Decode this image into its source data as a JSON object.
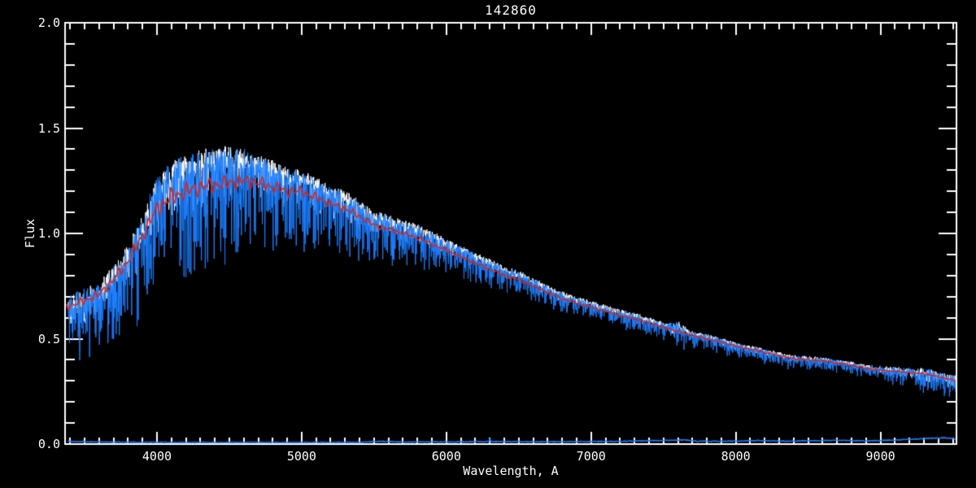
{
  "figure": {
    "background": "#000000",
    "text_color": "#ffffff"
  },
  "chart_data": {
    "type": "line",
    "title": "142860",
    "xlabel": "Wavelength, A",
    "ylabel": "Flux",
    "xlim": [
      3365,
      9525
    ],
    "ylim": [
      0.0,
      2.0
    ],
    "grid": false,
    "axis_color": "#ffffff",
    "x_major_ticks": [
      4000,
      5000,
      6000,
      7000,
      8000,
      9000
    ],
    "x_tick_labels": [
      "4000",
      "5000",
      "6000",
      "7000",
      "8000",
      "9000"
    ],
    "x_minor_step": 100,
    "y_major_ticks": [
      0.0,
      0.5,
      1.0,
      1.5,
      2.0
    ],
    "y_tick_labels": [
      "0.0",
      "0.5",
      "1.0",
      "1.5",
      "2.0"
    ],
    "y_minor_step": 0.1,
    "series": [
      {
        "name": "observed-spectrum-raw",
        "color": "#ffffff",
        "role": "observed spectrum (white, drawn beneath blue)"
      },
      {
        "name": "observed-spectrum",
        "color": "#1d7fff",
        "role": "observed spectrum (blue, noisy)"
      },
      {
        "name": "model-fit",
        "color": "#d8251b",
        "role": "smooth template/model fit (red)"
      },
      {
        "name": "noise-spectrum",
        "color": "#1d7fff",
        "role": "error/noise spectrum along flux=0"
      }
    ],
    "model_continuum": [
      [
        3365,
        0.65
      ],
      [
        3500,
        0.68
      ],
      [
        3600,
        0.71
      ],
      [
        3700,
        0.78
      ],
      [
        3800,
        0.87
      ],
      [
        3900,
        0.99
      ],
      [
        4000,
        1.12
      ],
      [
        4100,
        1.17
      ],
      [
        4200,
        1.2
      ],
      [
        4300,
        1.22
      ],
      [
        4400,
        1.23
      ],
      [
        4500,
        1.24
      ],
      [
        4600,
        1.25
      ],
      [
        4700,
        1.24
      ],
      [
        4800,
        1.22
      ],
      [
        4900,
        1.2
      ],
      [
        5000,
        1.2
      ],
      [
        5100,
        1.17
      ],
      [
        5200,
        1.14
      ],
      [
        5300,
        1.12
      ],
      [
        5400,
        1.08
      ],
      [
        5500,
        1.04
      ],
      [
        5600,
        1.02
      ],
      [
        5700,
        1.0
      ],
      [
        5800,
        0.98
      ],
      [
        5900,
        0.95
      ],
      [
        6000,
        0.92
      ],
      [
        6100,
        0.89
      ],
      [
        6200,
        0.86
      ],
      [
        6300,
        0.83
      ],
      [
        6400,
        0.8
      ],
      [
        6500,
        0.78
      ],
      [
        6600,
        0.75
      ],
      [
        6700,
        0.72
      ],
      [
        6800,
        0.69
      ],
      [
        6900,
        0.67
      ],
      [
        7000,
        0.65
      ],
      [
        7100,
        0.63
      ],
      [
        7200,
        0.61
      ],
      [
        7300,
        0.595
      ],
      [
        7400,
        0.575
      ],
      [
        7500,
        0.555
      ],
      [
        7600,
        0.535
      ],
      [
        7700,
        0.515
      ],
      [
        7800,
        0.5
      ],
      [
        7900,
        0.485
      ],
      [
        8000,
        0.465
      ],
      [
        8100,
        0.45
      ],
      [
        8200,
        0.435
      ],
      [
        8300,
        0.42
      ],
      [
        8400,
        0.405
      ],
      [
        8500,
        0.4
      ],
      [
        8600,
        0.395
      ],
      [
        8700,
        0.385
      ],
      [
        8800,
        0.375
      ],
      [
        8900,
        0.36
      ],
      [
        9000,
        0.35
      ],
      [
        9100,
        0.345
      ],
      [
        9200,
        0.34
      ],
      [
        9300,
        0.335
      ],
      [
        9400,
        0.32
      ],
      [
        9525,
        0.3
      ]
    ],
    "observed_boost": [
      [
        3365,
        1.0
      ],
      [
        3800,
        1.01
      ],
      [
        4000,
        1.05
      ],
      [
        4150,
        1.08
      ],
      [
        4450,
        1.08
      ],
      [
        4700,
        1.06
      ],
      [
        5000,
        1.04
      ],
      [
        5400,
        1.03
      ],
      [
        6000,
        1.025
      ],
      [
        6500,
        1.02
      ],
      [
        7000,
        1.012
      ],
      [
        7500,
        1.008
      ],
      [
        8000,
        1.0
      ],
      [
        9525,
        1.0
      ]
    ],
    "blue_noise": {
      "up": [
        [
          3365,
          0.13
        ],
        [
          3800,
          0.12
        ],
        [
          4000,
          0.11
        ],
        [
          4300,
          0.1
        ],
        [
          4700,
          0.07
        ],
        [
          5000,
          0.055
        ],
        [
          5500,
          0.05
        ],
        [
          6000,
          0.045
        ],
        [
          6500,
          0.04
        ],
        [
          7000,
          0.04
        ],
        [
          7530,
          0.05
        ],
        [
          7600,
          0.13
        ],
        [
          7680,
          0.05
        ],
        [
          8000,
          0.05
        ],
        [
          8500,
          0.055
        ],
        [
          8900,
          0.06
        ],
        [
          9150,
          0.11
        ],
        [
          9350,
          0.12
        ],
        [
          9525,
          0.12
        ]
      ],
      "down": [
        [
          3365,
          0.38
        ],
        [
          3700,
          0.42
        ],
        [
          3950,
          0.4
        ],
        [
          4200,
          0.4
        ],
        [
          4500,
          0.36
        ],
        [
          4800,
          0.28
        ],
        [
          5100,
          0.26
        ],
        [
          5400,
          0.22
        ],
        [
          5700,
          0.18
        ],
        [
          6000,
          0.15
        ],
        [
          6300,
          0.13
        ],
        [
          6600,
          0.12
        ],
        [
          7000,
          0.1
        ],
        [
          7530,
          0.11
        ],
        [
          7600,
          0.2
        ],
        [
          7680,
          0.11
        ],
        [
          8000,
          0.12
        ],
        [
          8300,
          0.13
        ],
        [
          8700,
          0.11
        ],
        [
          9000,
          0.14
        ],
        [
          9200,
          0.24
        ],
        [
          9400,
          0.28
        ],
        [
          9525,
          0.3
        ]
      ]
    },
    "white_noise_scale": {
      "up": 0.75,
      "down": 0.4,
      "extra_boost": 1.015,
      "line_depth_fraction": 0.55
    },
    "red_wiggle_amp": [
      [
        3365,
        0.03
      ],
      [
        3800,
        0.035
      ],
      [
        4100,
        0.04
      ],
      [
        4600,
        0.03
      ],
      [
        5000,
        0.022
      ],
      [
        5500,
        0.015
      ],
      [
        6000,
        0.012
      ],
      [
        6500,
        0.01
      ],
      [
        7000,
        0.008
      ],
      [
        8000,
        0.008
      ],
      [
        8600,
        0.01
      ],
      [
        9525,
        0.008
      ]
    ],
    "absorption_lines_columns": [
      "center_A",
      "sigma_A",
      "observed_min_flux",
      "model_min_flux"
    ],
    "absorption_lines": [
      [
        3580,
        8,
        0.45
      ],
      [
        3620,
        6,
        0.5
      ],
      [
        3660,
        5,
        0.52
      ],
      [
        3705,
        7,
        0.36
      ],
      [
        3735,
        6,
        0.3
      ],
      [
        3770,
        6,
        0.4
      ],
      [
        3798,
        6,
        0.42
      ],
      [
        3835,
        7,
        0.34,
        0.84
      ],
      [
        3868,
        5,
        0.45
      ],
      [
        3890,
        7,
        0.3,
        0.86
      ],
      [
        3933,
        7,
        0.13,
        0.63
      ],
      [
        3968,
        7,
        0.17,
        0.66
      ],
      [
        4030,
        5,
        0.56
      ],
      [
        4102,
        9,
        0.5,
        1.03
      ],
      [
        4144,
        5,
        0.72
      ],
      [
        4226,
        5,
        0.64
      ],
      [
        4300,
        8,
        0.49,
        1.09
      ],
      [
        4340,
        9,
        0.5,
        1.02
      ],
      [
        4383,
        5,
        0.58
      ],
      [
        4415,
        4,
        0.68
      ],
      [
        4458,
        4,
        0.73
      ],
      [
        4530,
        5,
        0.78
      ],
      [
        4570,
        4,
        0.8
      ],
      [
        4668,
        5,
        0.76
      ],
      [
        4703,
        4,
        0.8
      ],
      [
        4861,
        9,
        0.43,
        0.97
      ],
      [
        4920,
        5,
        0.8
      ],
      [
        5015,
        5,
        0.83
      ],
      [
        5110,
        4,
        0.8
      ],
      [
        5170,
        9,
        0.62,
        1.05
      ],
      [
        5210,
        4,
        0.78
      ],
      [
        5270,
        6,
        0.7
      ],
      [
        5330,
        4,
        0.8
      ],
      [
        5405,
        4,
        0.8
      ],
      [
        5530,
        4,
        0.8
      ],
      [
        5710,
        4,
        0.78
      ],
      [
        5890,
        7,
        0.45,
        0.89
      ],
      [
        6020,
        4,
        0.74
      ],
      [
        6160,
        5,
        0.71
      ],
      [
        6250,
        4,
        0.7
      ],
      [
        6300,
        4,
        0.68
      ],
      [
        6400,
        4,
        0.68
      ],
      [
        6495,
        4,
        0.67
      ],
      [
        6563,
        8,
        0.24,
        0.585
      ],
      [
        6717,
        4,
        0.62
      ],
      [
        6870,
        6,
        0.55
      ],
      [
        7000,
        4,
        0.58
      ],
      [
        7180,
        5,
        0.55
      ],
      [
        7400,
        4,
        0.52
      ],
      [
        7600,
        7,
        0.42
      ],
      [
        7665,
        5,
        0.5
      ],
      [
        8230,
        8,
        0.33
      ],
      [
        8330,
        4,
        0.35
      ],
      [
        8430,
        4,
        0.34
      ],
      [
        8498,
        5,
        0.31,
        0.41
      ],
      [
        8545,
        6,
        0.15,
        0.375
      ],
      [
        8662,
        6,
        0.17,
        0.375
      ],
      [
        8750,
        4,
        0.33
      ],
      [
        8810,
        4,
        0.34
      ],
      [
        9015,
        5,
        0.3
      ],
      [
        9120,
        5,
        0.2
      ],
      [
        9230,
        4,
        0.26
      ],
      [
        9345,
        5,
        0.22
      ],
      [
        9430,
        5,
        0.2
      ],
      [
        9487,
        4,
        0.2
      ]
    ],
    "noise_floor_flux": [
      [
        3365,
        0.014
      ],
      [
        3550,
        0.01
      ],
      [
        4000,
        0.008
      ],
      [
        4600,
        0.008
      ],
      [
        5000,
        0.008
      ],
      [
        5400,
        0.009
      ],
      [
        5580,
        0.013
      ],
      [
        5700,
        0.01
      ],
      [
        6100,
        0.011
      ],
      [
        6296,
        0.012
      ],
      [
        6301,
        0.034
      ],
      [
        6306,
        0.012
      ],
      [
        6600,
        0.011
      ],
      [
        6900,
        0.012
      ],
      [
        7200,
        0.013
      ],
      [
        7550,
        0.018
      ],
      [
        7650,
        0.02
      ],
      [
        7750,
        0.013
      ],
      [
        8000,
        0.014
      ],
      [
        8150,
        0.017
      ],
      [
        8300,
        0.014
      ],
      [
        8550,
        0.016
      ],
      [
        8700,
        0.018
      ],
      [
        8900,
        0.015
      ],
      [
        9100,
        0.019
      ],
      [
        9300,
        0.026
      ],
      [
        9440,
        0.03
      ],
      [
        9525,
        0.024
      ]
    ]
  }
}
